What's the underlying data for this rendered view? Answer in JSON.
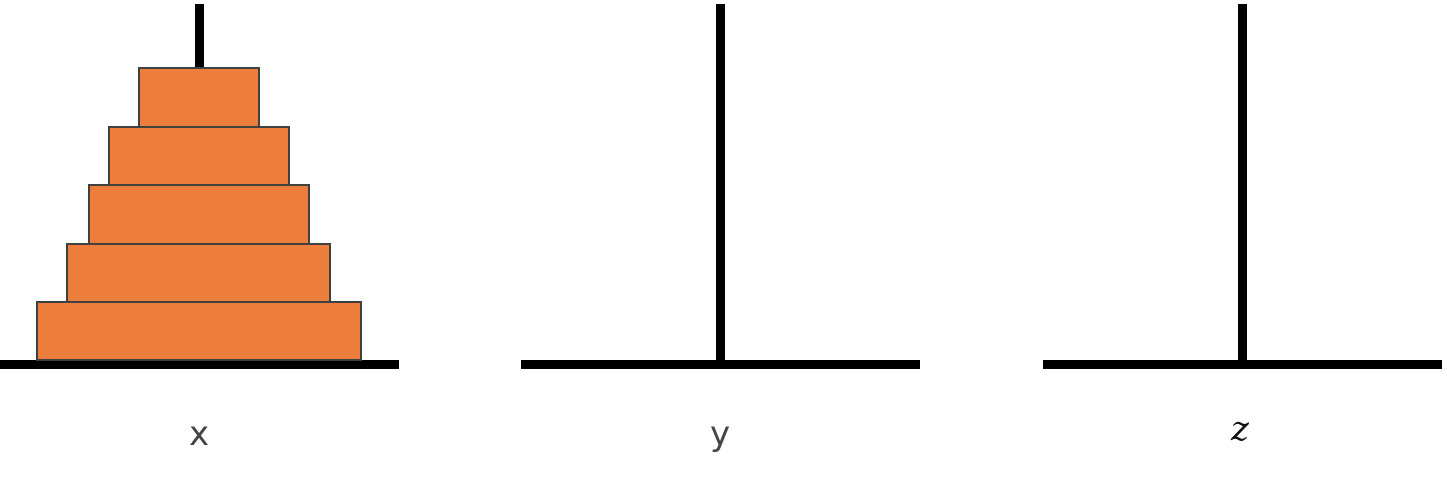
{
  "pegs": [
    {
      "label": "x",
      "disks": [
        5,
        4,
        3,
        2,
        1
      ]
    },
    {
      "label": "y",
      "disks": []
    },
    {
      "label": "z",
      "disks": []
    }
  ],
  "colors": {
    "disk_fill": "#ED7D3A",
    "disk_stroke": "#404040",
    "peg": "#000000"
  }
}
